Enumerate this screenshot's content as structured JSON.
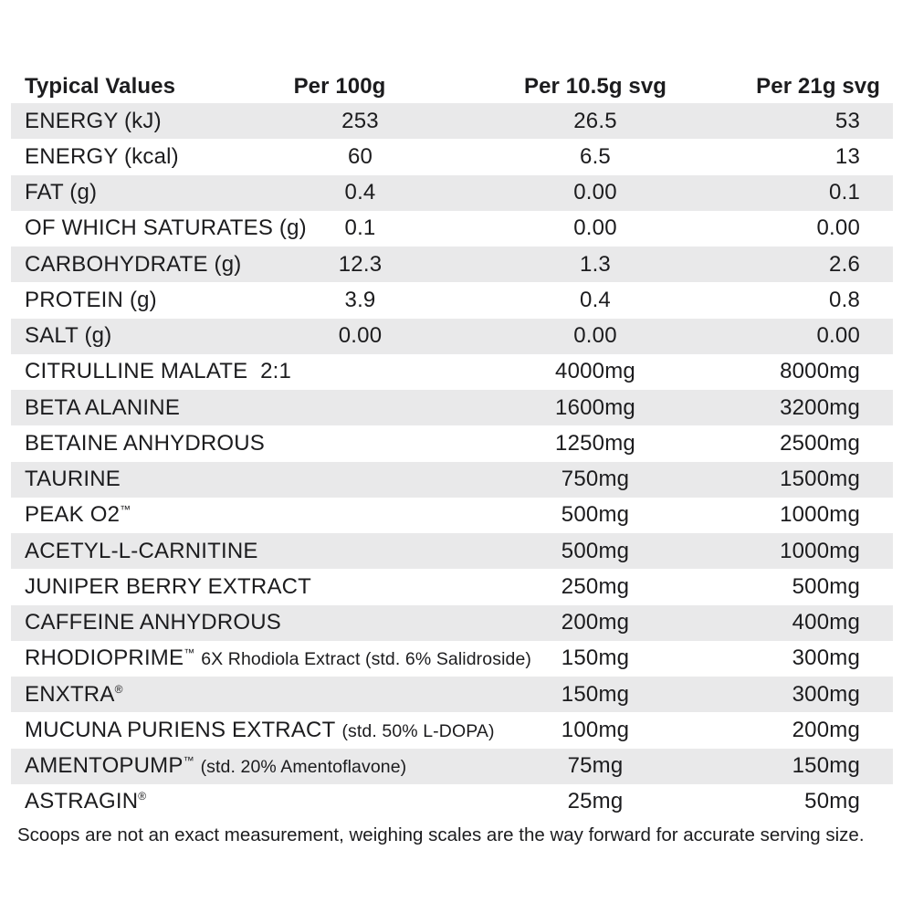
{
  "colors": {
    "background": "#ffffff",
    "stripe": "#e9e9ea",
    "text": "#1c1c1e"
  },
  "table": {
    "header": {
      "col_label": "Typical Values",
      "col_per100g": "Per 100g",
      "col_serving1": "Per 10.5g svg",
      "col_serving2": "Per 21g svg"
    },
    "rows": [
      {
        "label": "ENERGY (kJ)",
        "per100g": "253",
        "serving1": "26.5",
        "serving2": "53"
      },
      {
        "label": "ENERGY (kcal)",
        "per100g": "60",
        "serving1": "6.5",
        "serving2": "13"
      },
      {
        "label": "FAT (g)",
        "per100g": "0.4",
        "serving1": "0.00",
        "serving2": "0.1"
      },
      {
        "label": "OF WHICH SATURATES (g)",
        "per100g": "0.1",
        "serving1": "0.00",
        "serving2": "0.00"
      },
      {
        "label": "CARBOHYDRATE (g)",
        "per100g": "12.3",
        "serving1": "1.3",
        "serving2": "2.6"
      },
      {
        "label": "PROTEIN (g)",
        "per100g": "3.9",
        "serving1": "0.4",
        "serving2": "0.8"
      },
      {
        "label": "SALT (g)",
        "per100g": "0.00",
        "serving1": "0.00",
        "serving2": "0.00"
      },
      {
        "label": "CITRULLINE MALATE  2:1",
        "serving1": "4000mg",
        "serving2": "8000mg"
      },
      {
        "label": "BETA ALANINE",
        "serving1": "1600mg",
        "serving2": "3200mg"
      },
      {
        "label": "BETAINE ANHYDROUS",
        "serving1": "1250mg",
        "serving2": "2500mg"
      },
      {
        "label": "TAURINE",
        "serving1": "750mg",
        "serving2": "1500mg"
      },
      {
        "label": "PEAK O2",
        "mark": "™",
        "serving1": "500mg",
        "serving2": "1000mg"
      },
      {
        "label": "ACETYL-L-CARNITINE",
        "serving1": "500mg",
        "serving2": "1000mg"
      },
      {
        "label": "JUNIPER BERRY EXTRACT",
        "serving1": "250mg",
        "serving2": "500mg"
      },
      {
        "label": "CAFFEINE ANHYDROUS",
        "serving1": "200mg",
        "serving2": "400mg"
      },
      {
        "label": "RHODIOPRIME",
        "mark": "™",
        "note": "6X Rhodiola Extract (std. 6% Salidroside)",
        "serving1": "150mg",
        "serving2": "300mg"
      },
      {
        "label": "ENXTRA",
        "mark": "®",
        "serving1": "150mg",
        "serving2": "300mg"
      },
      {
        "label": "MUCUNA PURIENS EXTRACT",
        "note": "(std. 50% L-DOPA)",
        "serving1": "100mg",
        "serving2": "200mg"
      },
      {
        "label": "AMENTOPUMP",
        "mark": "™",
        "note": "(std. 20% Amentoflavone)",
        "serving1": "75mg",
        "serving2": "150mg"
      },
      {
        "label": "ASTRAGIN",
        "mark": "®",
        "serving1": "25mg",
        "serving2": "50mg"
      }
    ]
  },
  "footer": {
    "note": "Scoops are not an exact measurement, weighing scales are the way forward for accurate serving size."
  }
}
